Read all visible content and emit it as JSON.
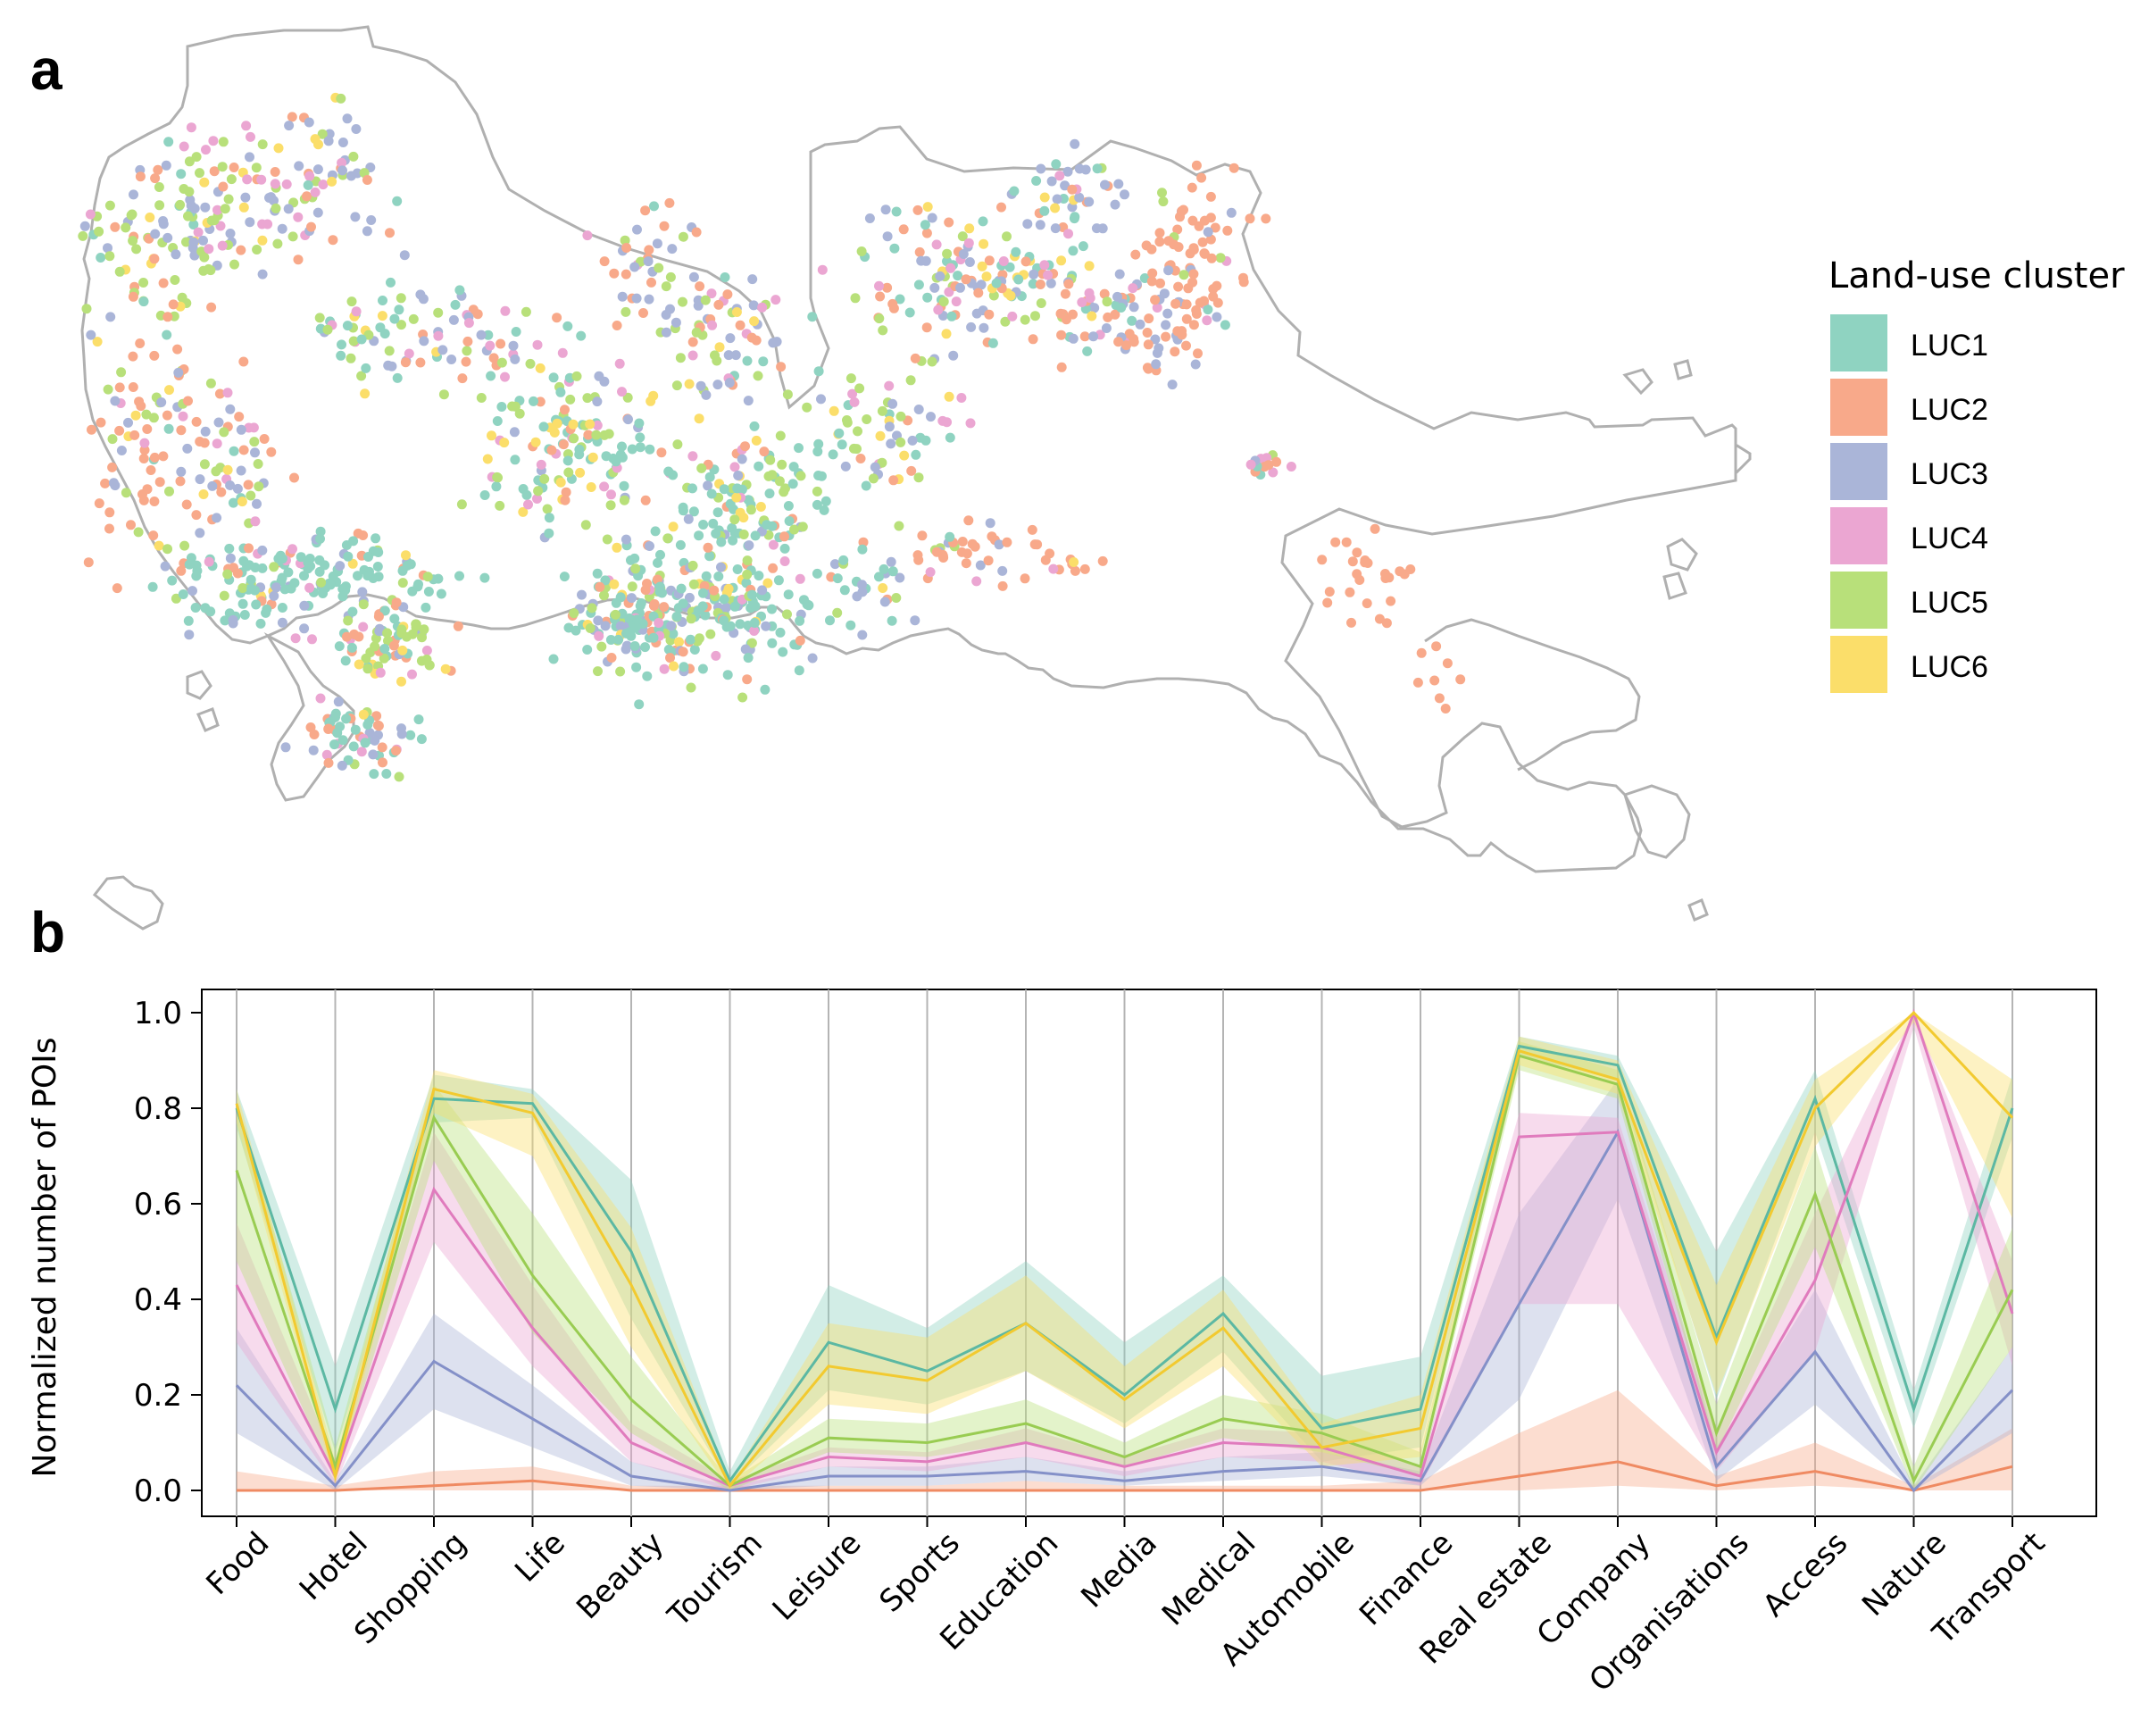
{
  "panels": {
    "map_label": "a",
    "chart_label": "b"
  },
  "legend": {
    "title": "Land-use cluster",
    "items": [
      {
        "label": "LUC1",
        "color": "#8fd3c1"
      },
      {
        "label": "LUC2",
        "color": "#f8a98a"
      },
      {
        "label": "LUC3",
        "color": "#aab5d8"
      },
      {
        "label": "LUC4",
        "color": "#eba6d2"
      },
      {
        "label": "LUC5",
        "color": "#b8e07a"
      },
      {
        "label": "LUC6",
        "color": "#fbde6a"
      }
    ]
  },
  "chart_data": {
    "type": "line",
    "title": "",
    "xlabel": "",
    "ylabel": "Normalized number of POIs",
    "ylim": [
      0,
      1.0
    ],
    "yticks": [
      "0.0",
      "0.2",
      "0.4",
      "0.6",
      "0.8",
      "1.0"
    ],
    "grid": "vertical lines at each category",
    "categories": [
      "Food",
      "Hotel",
      "Shopping",
      "Life",
      "Beauty",
      "Tourism",
      "Leisure",
      "Sports",
      "Education",
      "Media",
      "Medical",
      "Automobile",
      "Finance",
      "Real estate",
      "Company",
      "Organisations",
      "Access",
      "Nature",
      "Transport"
    ],
    "series": [
      {
        "name": "LUC1",
        "line_color": "#5cb8a3",
        "band_color": "#8fd3c1",
        "values": [
          0.8,
          0.17,
          0.82,
          0.81,
          0.5,
          0.02,
          0.31,
          0.25,
          0.35,
          0.2,
          0.37,
          0.13,
          0.17,
          0.93,
          0.89,
          0.32,
          0.82,
          0.17,
          0.8
        ],
        "lower": [
          0.76,
          0.08,
          0.77,
          0.78,
          0.36,
          0.01,
          0.21,
          0.18,
          0.25,
          0.14,
          0.29,
          0.06,
          0.09,
          0.91,
          0.86,
          0.19,
          0.75,
          0.13,
          0.74
        ],
        "upper": [
          0.84,
          0.26,
          0.87,
          0.84,
          0.65,
          0.04,
          0.43,
          0.34,
          0.48,
          0.31,
          0.45,
          0.24,
          0.28,
          0.95,
          0.91,
          0.5,
          0.88,
          0.21,
          0.87
        ]
      },
      {
        "name": "LUC2",
        "line_color": "#ef8a62",
        "band_color": "#f8a98a",
        "values": [
          0.0,
          0.0,
          0.01,
          0.02,
          0.0,
          0.0,
          0.0,
          0.0,
          0.0,
          0.0,
          0.0,
          0.0,
          0.0,
          0.03,
          0.06,
          0.01,
          0.04,
          0.0,
          0.05
        ],
        "lower": [
          0.0,
          0.0,
          0.0,
          0.0,
          0.0,
          0.0,
          0.0,
          0.0,
          0.0,
          0.0,
          0.0,
          0.0,
          0.0,
          0.0,
          0.01,
          0.0,
          0.01,
          0.0,
          0.0
        ],
        "upper": [
          0.04,
          0.01,
          0.04,
          0.05,
          0.01,
          0.01,
          0.01,
          0.01,
          0.02,
          0.01,
          0.01,
          0.01,
          0.02,
          0.12,
          0.21,
          0.03,
          0.1,
          0.01,
          0.13
        ]
      },
      {
        "name": "LUC3",
        "line_color": "#8490c8",
        "band_color": "#aab5d8",
        "values": [
          0.22,
          0.01,
          0.27,
          0.15,
          0.03,
          0.0,
          0.03,
          0.03,
          0.04,
          0.02,
          0.04,
          0.05,
          0.02,
          0.39,
          0.75,
          0.05,
          0.29,
          0.0,
          0.21
        ],
        "lower": [
          0.12,
          0.0,
          0.17,
          0.09,
          0.01,
          0.0,
          0.01,
          0.01,
          0.02,
          0.01,
          0.02,
          0.03,
          0.01,
          0.19,
          0.61,
          0.02,
          0.18,
          0.0,
          0.12
        ],
        "upper": [
          0.34,
          0.02,
          0.37,
          0.22,
          0.06,
          0.01,
          0.05,
          0.05,
          0.07,
          0.04,
          0.07,
          0.08,
          0.04,
          0.58,
          0.86,
          0.09,
          0.42,
          0.01,
          0.3
        ]
      },
      {
        "name": "LUC4",
        "line_color": "#e07bbd",
        "band_color": "#eba6d2",
        "values": [
          0.43,
          0.03,
          0.63,
          0.34,
          0.1,
          0.01,
          0.07,
          0.06,
          0.1,
          0.05,
          0.1,
          0.09,
          0.03,
          0.74,
          0.75,
          0.08,
          0.44,
          1.0,
          0.37
        ],
        "lower": [
          0.31,
          0.01,
          0.52,
          0.26,
          0.06,
          0.0,
          0.05,
          0.04,
          0.07,
          0.03,
          0.07,
          0.06,
          0.01,
          0.39,
          0.39,
          0.04,
          0.29,
          0.97,
          0.26
        ],
        "upper": [
          0.56,
          0.06,
          0.75,
          0.43,
          0.14,
          0.02,
          0.09,
          0.08,
          0.13,
          0.07,
          0.13,
          0.12,
          0.05,
          0.79,
          0.78,
          0.12,
          0.58,
          1.0,
          0.48
        ]
      },
      {
        "name": "LUC5",
        "line_color": "#99cc52",
        "band_color": "#b8e07a",
        "values": [
          0.67,
          0.05,
          0.78,
          0.45,
          0.19,
          0.01,
          0.11,
          0.1,
          0.14,
          0.07,
          0.15,
          0.12,
          0.05,
          0.91,
          0.85,
          0.12,
          0.62,
          0.02,
          0.42
        ],
        "lower": [
          0.48,
          0.02,
          0.69,
          0.33,
          0.12,
          0.0,
          0.08,
          0.07,
          0.1,
          0.05,
          0.11,
          0.08,
          0.03,
          0.88,
          0.82,
          0.08,
          0.51,
          0.0,
          0.3
        ],
        "upper": [
          0.82,
          0.09,
          0.85,
          0.58,
          0.28,
          0.02,
          0.15,
          0.14,
          0.19,
          0.1,
          0.2,
          0.16,
          0.08,
          0.94,
          0.88,
          0.18,
          0.72,
          0.05,
          0.55
        ]
      },
      {
        "name": "LUC6",
        "line_color": "#f2ca30",
        "band_color": "#fbde6a",
        "values": [
          0.81,
          0.03,
          0.84,
          0.79,
          0.43,
          0.01,
          0.26,
          0.23,
          0.35,
          0.19,
          0.34,
          0.09,
          0.13,
          0.92,
          0.86,
          0.31,
          0.8,
          1.0,
          0.78
        ],
        "lower": [
          0.77,
          0.01,
          0.79,
          0.7,
          0.3,
          0.0,
          0.18,
          0.16,
          0.25,
          0.13,
          0.26,
          0.05,
          0.07,
          0.89,
          0.83,
          0.2,
          0.72,
          0.98,
          0.57
        ],
        "upper": [
          0.84,
          0.06,
          0.88,
          0.83,
          0.55,
          0.02,
          0.35,
          0.32,
          0.45,
          0.26,
          0.42,
          0.14,
          0.2,
          0.95,
          0.9,
          0.43,
          0.86,
          1.0,
          0.86
        ]
      }
    ]
  }
}
